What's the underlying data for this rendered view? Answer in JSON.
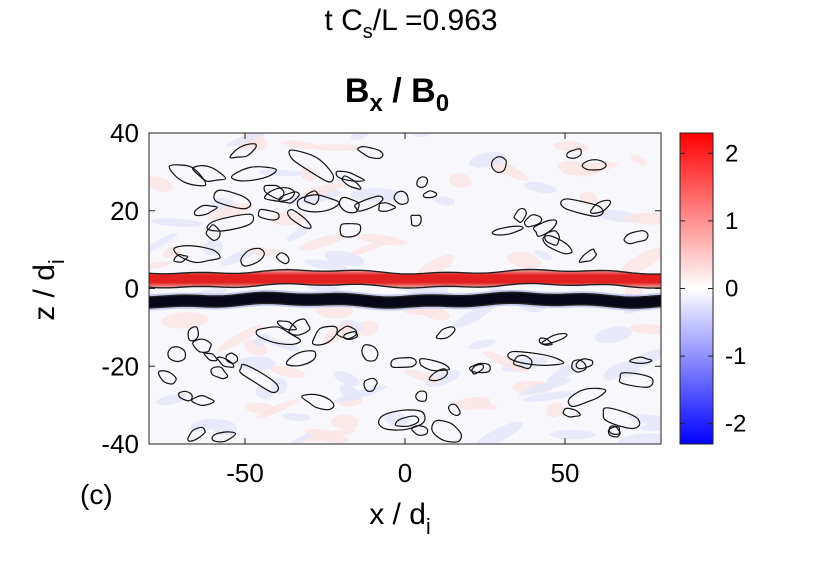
{
  "header": {
    "time_label": {
      "prefix": "t C",
      "sub": "s",
      "suffix": "/L =0.963"
    }
  },
  "chart_data": {
    "type": "heatmap",
    "title": {
      "num": "B",
      "num_sub": "x",
      "sep": " / ",
      "den": "B",
      "den_sub": "0"
    },
    "xlabel": {
      "main": "x / d",
      "sub": "i"
    },
    "ylabel": {
      "main": "z / d",
      "sub": "i"
    },
    "xlim": [
      -80,
      80
    ],
    "ylim": [
      -40,
      40
    ],
    "xticks": [
      -50,
      0,
      50
    ],
    "yticks": [
      40,
      20,
      0,
      -20,
      -40
    ],
    "xtick_labels": [
      "-50",
      "0",
      "50"
    ],
    "ytick_labels": [
      "40",
      "20",
      "0",
      "-20",
      "-40"
    ],
    "colorbar": {
      "range": [
        -2.3,
        2.3
      ],
      "ticks": [
        2,
        1,
        0,
        -1,
        -2
      ],
      "tick_labels": [
        "2",
        "1",
        "0",
        "-1",
        "-2"
      ],
      "colors": [
        "#0000ff",
        "#ffffff",
        "#ff0000"
      ]
    },
    "features": [
      {
        "name": "positive current sheet",
        "z": 2.5,
        "value": 2
      },
      {
        "name": "negative current sheet",
        "z": -3,
        "value": -2
      }
    ],
    "panel_label": "(c)"
  }
}
